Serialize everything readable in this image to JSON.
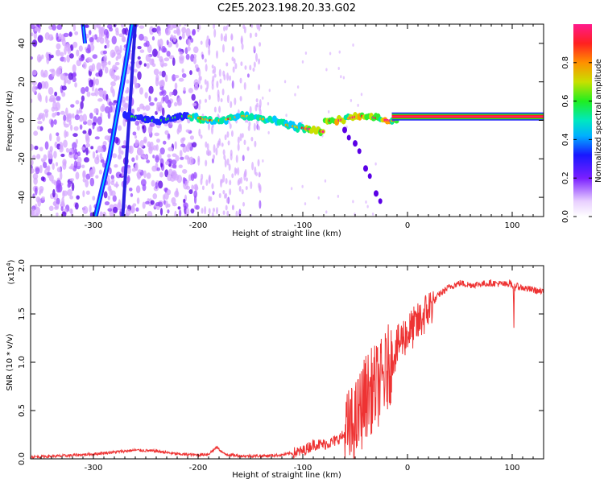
{
  "figure_title": "C2E5.2023.198.20.33.G02",
  "colors": {
    "snr_line": "#ee3333",
    "cmap": [
      "#f7e9ff",
      "#d6a8ff",
      "#9a4cff",
      "#5a00e6",
      "#2222ff",
      "#00c8ff",
      "#00e8a0",
      "#30ee30",
      "#c8e000",
      "#ffa000",
      "#ff2020",
      "#ff1a8c"
    ]
  },
  "chart_data": [
    {
      "type": "heatmap",
      "xlabel": "Height of straight line (km)",
      "ylabel": "Frequency (Hz)",
      "xlim": [
        -360,
        130
      ],
      "ylim": [
        -50,
        50
      ],
      "xticks": [
        -300,
        -200,
        -100,
        0,
        100
      ],
      "yticks": [
        -40,
        -20,
        0,
        20,
        40
      ],
      "grid": false,
      "colorbar": {
        "label": "Normalized spectral amplitude",
        "range": [
          0,
          1
        ],
        "ticks": [
          0.0,
          0.2,
          0.4,
          0.6,
          0.8
        ]
      },
      "features": {
        "carrier_line": {
          "x_start": -210,
          "x_end": 130,
          "y": 2,
          "amplitude": 0.9
        },
        "steep_streak": {
          "points": [
            [
              -298,
              -50
            ],
            [
              -285,
              -20
            ],
            [
              -272,
              20
            ],
            [
              -263,
              50
            ]
          ],
          "amplitude": 0.3
        },
        "second_streak": {
          "points": [
            [
              -310,
              50
            ],
            [
              -308,
              40
            ]
          ],
          "amplitude": 0.3
        },
        "noise_region_dense": {
          "x_start": -360,
          "x_end": -200
        },
        "noise_region_sparse": {
          "x_start": -200,
          "x_end": -140
        },
        "lower_branch": {
          "points": [
            [
              -60,
              -5
            ],
            [
              -50,
              -12
            ],
            [
              -40,
              -25
            ],
            [
              -30,
              -38
            ]
          ]
        }
      }
    },
    {
      "type": "line",
      "xlabel": "Height of straight line (km)",
      "ylabel": "SNR (10 * v/v)",
      "multiplier_label": "(x10",
      "multiplier_exp": "4",
      "xlim": [
        -360,
        130
      ],
      "ylim": [
        0,
        2.0
      ],
      "xticks": [
        -300,
        -200,
        -100,
        0,
        100
      ],
      "yticks": [
        0.0,
        0.5,
        1.0,
        1.5,
        2.0
      ],
      "grid": false,
      "series": [
        {
          "x": [
            -360,
            -330,
            -300,
            -280,
            -260,
            -240,
            -220,
            -200,
            -190,
            -182,
            -175,
            -160,
            -140,
            -120,
            -100,
            -90,
            -80,
            -70,
            -60,
            -50,
            -45,
            -40,
            -35,
            -30,
            -25,
            -20,
            -15,
            -10,
            -5,
            0,
            5,
            10,
            20,
            30,
            40,
            50,
            60,
            80,
            100,
            110,
            120,
            130
          ],
          "y": [
            0.02,
            0.03,
            0.05,
            0.07,
            0.09,
            0.08,
            0.05,
            0.04,
            0.05,
            0.12,
            0.05,
            0.03,
            0.03,
            0.04,
            0.08,
            0.15,
            0.15,
            0.18,
            0.25,
            0.35,
            0.5,
            0.65,
            0.7,
            0.75,
            0.8,
            0.9,
            1.05,
            1.15,
            1.25,
            1.3,
            1.35,
            1.4,
            1.55,
            1.7,
            1.78,
            1.82,
            1.8,
            1.82,
            1.8,
            1.77,
            1.75,
            1.72
          ]
        }
      ]
    }
  ]
}
